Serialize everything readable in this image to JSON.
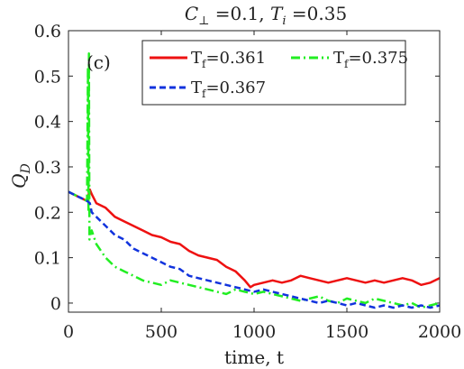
{
  "chart_data": {
    "type": "line",
    "title": "C⊥ =0.1, T_i =0.35",
    "title_parts": {
      "c_symbol": "C",
      "c_sub": "⊥",
      "c_val": " =0.1, ",
      "t_symbol": "T",
      "t_sub": "i",
      "t_val": " =0.35"
    },
    "panel_label": "(c)",
    "xlabel": "time, t",
    "ylabel_symbol": "Q",
    "ylabel_sub": "D",
    "xlim": [
      0,
      2000
    ],
    "ylim": [
      -0.02,
      0.6
    ],
    "xticks": [
      "0",
      "500",
      "1000",
      "1500",
      "2000"
    ],
    "xtick_values": [
      0,
      500,
      1000,
      1500,
      2000
    ],
    "yticks": [
      "0",
      "0.1",
      "0.2",
      "0.3",
      "0.4",
      "0.5",
      "0.6"
    ],
    "ytick_values": [
      0,
      0.1,
      0.2,
      0.3,
      0.4,
      0.5,
      0.6
    ],
    "legend_placement": "top-right",
    "series": [
      {
        "name": "T_f=0.361",
        "legend_label": "T",
        "legend_sub": "f",
        "legend_value": "=0.361",
        "color": "#ee1111",
        "style": "solid",
        "x": [
          0,
          50,
          100,
          115,
          125,
          150,
          200,
          250,
          300,
          350,
          400,
          450,
          500,
          550,
          600,
          650,
          700,
          750,
          800,
          850,
          900,
          950,
          980,
          1000,
          1050,
          1100,
          1150,
          1200,
          1250,
          1300,
          1350,
          1400,
          1450,
          1500,
          1550,
          1600,
          1650,
          1700,
          1750,
          1800,
          1850,
          1900,
          1950,
          2000
        ],
        "y": [
          0.245,
          0.235,
          0.225,
          0.25,
          0.24,
          0.22,
          0.21,
          0.19,
          0.18,
          0.17,
          0.16,
          0.15,
          0.145,
          0.135,
          0.13,
          0.115,
          0.105,
          0.1,
          0.095,
          0.08,
          0.07,
          0.05,
          0.035,
          0.04,
          0.045,
          0.05,
          0.045,
          0.05,
          0.06,
          0.055,
          0.05,
          0.045,
          0.05,
          0.055,
          0.05,
          0.045,
          0.05,
          0.045,
          0.05,
          0.055,
          0.05,
          0.04,
          0.045,
          0.055
        ]
      },
      {
        "name": "T_f=0.375",
        "legend_label": "T",
        "legend_sub": "f",
        "legend_value": "=0.375",
        "color": "#22ee22",
        "style": "dashdot",
        "x": [
          0,
          50,
          100,
          105,
          108,
          110,
          113,
          118,
          125,
          150,
          200,
          250,
          300,
          350,
          400,
          450,
          500,
          550,
          600,
          650,
          700,
          750,
          800,
          850,
          900,
          950,
          1000,
          1050,
          1100,
          1150,
          1200,
          1250,
          1300,
          1350,
          1400,
          1450,
          1500,
          1550,
          1600,
          1650,
          1700,
          1750,
          1800,
          1850,
          1900,
          1950,
          2000
        ],
        "y": [
          0.245,
          0.235,
          0.225,
          0.52,
          0.2,
          0.55,
          0.14,
          0.15,
          0.16,
          0.13,
          0.1,
          0.08,
          0.07,
          0.06,
          0.05,
          0.045,
          0.04,
          0.05,
          0.045,
          0.04,
          0.035,
          0.03,
          0.025,
          0.02,
          0.03,
          0.025,
          0.02,
          0.025,
          0.02,
          0.015,
          0.01,
          0.005,
          0.01,
          0.015,
          0.005,
          0.0,
          0.01,
          0.005,
          0.0,
          0.01,
          0.005,
          0.0,
          -0.005,
          0.0,
          -0.01,
          -0.005,
          0.0
        ]
      },
      {
        "name": "T_f=0.367",
        "legend_label": "T",
        "legend_sub": "f",
        "legend_value": "=0.367",
        "color": "#1133dd",
        "style": "dashed",
        "x": [
          0,
          50,
          100,
          115,
          125,
          150,
          200,
          250,
          300,
          350,
          400,
          450,
          500,
          550,
          600,
          650,
          700,
          750,
          800,
          850,
          900,
          950,
          1000,
          1050,
          1100,
          1150,
          1200,
          1250,
          1300,
          1350,
          1400,
          1450,
          1500,
          1550,
          1600,
          1650,
          1700,
          1750,
          1800,
          1850,
          1900,
          1950,
          2000
        ],
        "y": [
          0.245,
          0.235,
          0.225,
          0.22,
          0.2,
          0.19,
          0.17,
          0.15,
          0.14,
          0.12,
          0.11,
          0.1,
          0.09,
          0.08,
          0.075,
          0.06,
          0.055,
          0.05,
          0.045,
          0.04,
          0.035,
          0.03,
          0.025,
          0.03,
          0.025,
          0.02,
          0.015,
          0.01,
          0.005,
          0.0,
          0.005,
          0.0,
          -0.005,
          0.0,
          -0.005,
          -0.01,
          -0.005,
          -0.01,
          -0.005,
          -0.01,
          -0.005,
          -0.01,
          -0.005
        ]
      }
    ]
  }
}
